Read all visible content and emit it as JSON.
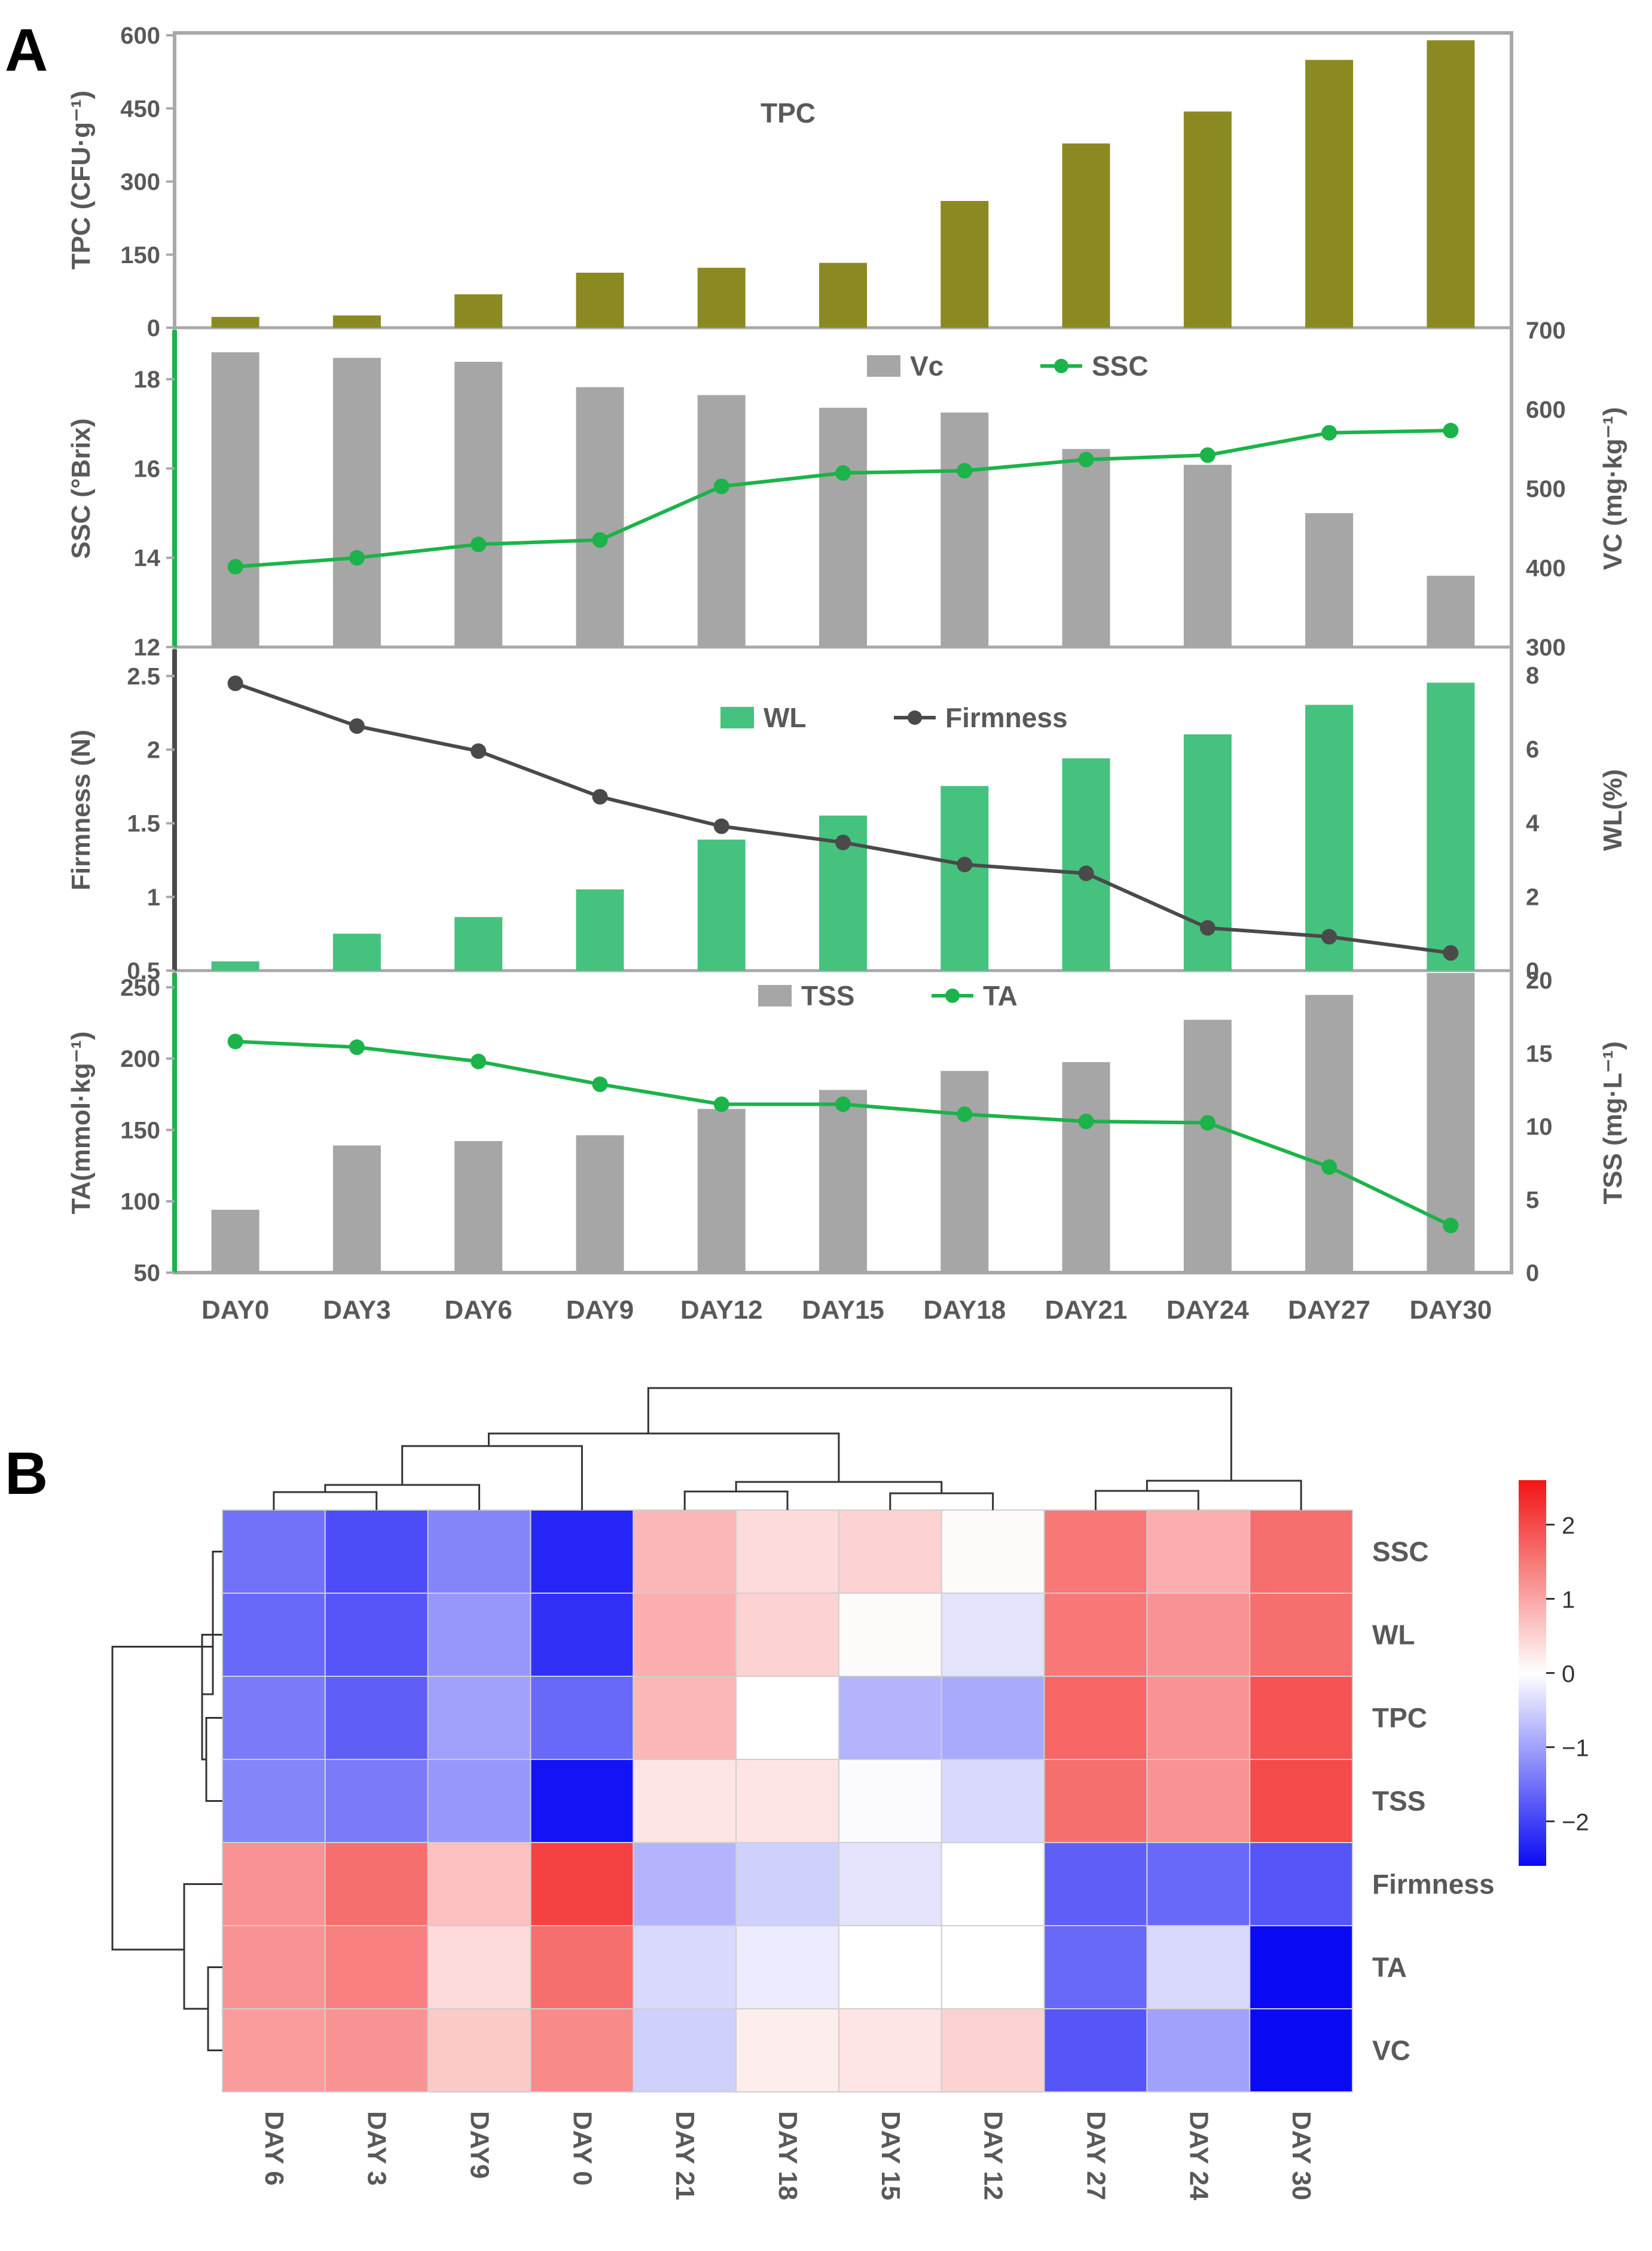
{
  "panel_labels": {
    "a": "A",
    "b": "B"
  },
  "days": [
    "DAY0",
    "DAY3",
    "DAY6",
    "DAY9",
    "DAY12",
    "DAY15",
    "DAY18",
    "DAY21",
    "DAY24",
    "DAY27",
    "DAY30"
  ],
  "colors": {
    "olive": "#8B8A22",
    "grey_bar": "#A6A6A6",
    "green": "#1CB34A",
    "wl_green": "#45C27E",
    "firm_line": "#4A4A4A",
    "axis_grey": "#A8A8A8",
    "text_grey": "#595959",
    "heat_low": "#0A0AF5",
    "heat_mid": "#FFFFFF",
    "heat_high": "#F21414"
  },
  "chart_data": [
    {
      "id": "tpc",
      "type": "bar",
      "title": "TPC",
      "ylabel": "TPC (CFU·g⁻¹)",
      "ylim": [
        0,
        600
      ],
      "yticks": [
        "0",
        "150",
        "300",
        "450",
        "600"
      ],
      "series": [
        {
          "name": "TPC",
          "values": [
            22,
            25,
            68,
            112,
            122,
            132,
            258,
            375,
            440,
            545,
            585
          ]
        }
      ]
    },
    {
      "id": "ssc_vc",
      "type": "bar+line",
      "legend": [
        "Vc",
        "SSC"
      ],
      "ylabel_left": "SSC (°Brix)",
      "ylabel_right": "VC (mg·kg⁻¹)",
      "ylim_left": [
        12,
        19.1
      ],
      "ylim_right": [
        300,
        700
      ],
      "yticks_left": [
        "12",
        "14",
        "16",
        "18"
      ],
      "yticks_right": [
        "300",
        "400",
        "500",
        "600",
        "700"
      ],
      "bars": {
        "name": "Vc",
        "axis": "right",
        "values": [
          672,
          665,
          660,
          628,
          618,
          602,
          596,
          550,
          530,
          469,
          390
        ]
      },
      "line": {
        "name": "SSC",
        "axis": "left",
        "values": [
          13.8,
          14.0,
          14.3,
          14.4,
          15.6,
          15.9,
          15.95,
          16.2,
          16.3,
          16.8,
          16.85
        ]
      }
    },
    {
      "id": "firm_wl",
      "type": "bar+line",
      "legend": [
        "WL",
        "Firmness"
      ],
      "ylabel_left": "Firmness (N)",
      "ylabel_right": "WL(%)",
      "ylim_left": [
        0.5,
        2.68
      ],
      "ylim_right": [
        0,
        8.7
      ],
      "yticks_left": [
        "0.5",
        "1",
        "1.5",
        "2",
        "2.5"
      ],
      "yticks_right": [
        "0",
        "2",
        "4",
        "6",
        "8"
      ],
      "bars": {
        "name": "WL",
        "axis": "right",
        "values": [
          0.25,
          1.0,
          1.45,
          2.2,
          3.55,
          4.2,
          5.0,
          5.75,
          6.4,
          7.2,
          7.8
        ]
      },
      "line": {
        "name": "Firmness",
        "axis": "left",
        "values": [
          2.45,
          2.16,
          1.99,
          1.68,
          1.48,
          1.37,
          1.22,
          1.16,
          0.79,
          0.73,
          0.62
        ]
      }
    },
    {
      "id": "ta_tss",
      "type": "bar+line",
      "legend": [
        "TSS",
        "TA"
      ],
      "ylabel_left": "TA(mmol·kg⁻¹)",
      "ylabel_right": "TSS (mg·L⁻¹)",
      "ylim_left": [
        50,
        260
      ],
      "ylim_right": [
        0,
        20.5
      ],
      "yticks_left": [
        "50",
        "100",
        "150",
        "200",
        "250"
      ],
      "yticks_right": [
        "0",
        "5",
        "10",
        "15",
        "20"
      ],
      "bars": {
        "name": "TSS",
        "axis": "right",
        "values": [
          4.3,
          8.7,
          9.0,
          9.4,
          11.2,
          12.5,
          13.8,
          14.4,
          17.3,
          19.0,
          21.0
        ]
      },
      "line": {
        "name": "TA",
        "axis": "left",
        "values": [
          212,
          208,
          198,
          182,
          168,
          168,
          161,
          156,
          155,
          124,
          83
        ]
      }
    },
    {
      "id": "heatmap",
      "type": "heatmap",
      "columns": [
        "DAY 6",
        "DAY 3",
        "DAY9",
        "DAY 0",
        "DAY 21",
        "DAY 18",
        "DAY 15",
        "DAY 12",
        "DAY 27",
        "DAY 24",
        "DAY 30"
      ],
      "rows": [
        "SSC",
        "WL",
        "TPC",
        "TSS",
        "Firmness",
        "TA",
        "VC"
      ],
      "values": [
        [
          -1.5,
          -1.9,
          -1.3,
          -2.3,
          0.8,
          0.4,
          0.5,
          0.05,
          1.5,
          0.9,
          1.6
        ],
        [
          -1.6,
          -1.8,
          -1.1,
          -2.2,
          0.9,
          0.5,
          0.05,
          -0.3,
          1.5,
          1.2,
          1.6
        ],
        [
          -1.4,
          -1.7,
          -1.0,
          -1.6,
          0.8,
          0.0,
          -0.8,
          -0.9,
          1.7,
          1.2,
          1.9
        ],
        [
          -1.3,
          -1.4,
          -1.1,
          -2.5,
          0.3,
          0.3,
          -0.05,
          -0.4,
          1.6,
          1.2,
          2.0
        ],
        [
          1.2,
          1.6,
          0.7,
          2.1,
          -0.8,
          -0.5,
          -0.3,
          0.0,
          -1.7,
          -1.6,
          -1.8
        ],
        [
          1.2,
          1.4,
          0.4,
          1.6,
          -0.4,
          -0.2,
          0.0,
          0.0,
          -1.6,
          -0.4,
          -2.8
        ],
        [
          1.1,
          1.2,
          0.6,
          1.3,
          -0.5,
          0.2,
          0.3,
          0.5,
          -1.8,
          -1.0,
          -2.8
        ]
      ],
      "scale": {
        "min": -2.6,
        "max": 2.6,
        "ticks": [
          "2",
          "1",
          "0",
          "−1",
          "−2"
        ]
      }
    }
  ]
}
